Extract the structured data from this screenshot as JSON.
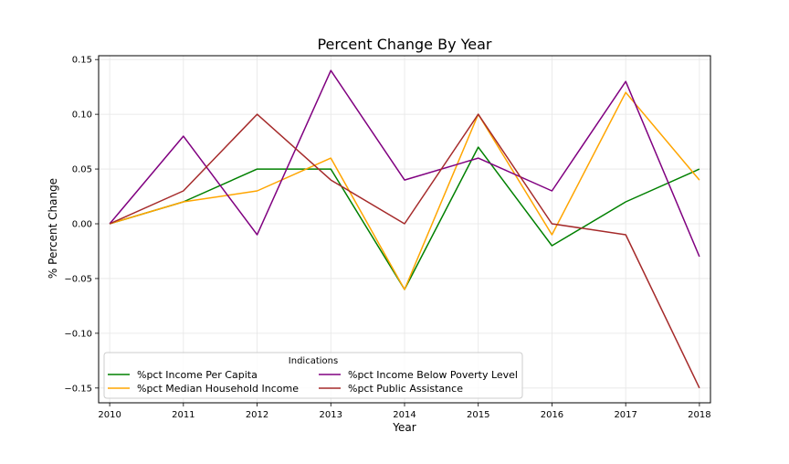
{
  "chart_data": {
    "type": "line",
    "title": "Percent Change By Year",
    "xlabel": "Year",
    "ylabel": "% Percent Change",
    "x": [
      2010,
      2011,
      2012,
      2013,
      2014,
      2015,
      2016,
      2017,
      2018
    ],
    "xlim": [
      2009.85,
      2018.15
    ],
    "ylim": [
      -0.1635,
      0.1535
    ],
    "yticks": [
      -0.15,
      -0.1,
      -0.05,
      0.0,
      0.05,
      0.1,
      0.15
    ],
    "ytick_labels": [
      "−0.15",
      "−0.10",
      "−0.05",
      "0.00",
      "0.05",
      "0.10",
      "0.15"
    ],
    "grid": true,
    "legend": {
      "title": "Indications",
      "placement": "lower-left",
      "columns": 2
    },
    "series": [
      {
        "name": "%pct Income Per Capita",
        "color": "#008000",
        "values": [
          0.0,
          0.02,
          0.05,
          0.05,
          -0.06,
          0.07,
          -0.02,
          0.02,
          0.05
        ]
      },
      {
        "name": "%pct Median Household Income",
        "color": "#ffa500",
        "values": [
          0.0,
          0.02,
          0.03,
          0.06,
          -0.06,
          0.1,
          -0.01,
          0.12,
          0.04
        ]
      },
      {
        "name": "%pct Income Below Poverty Level",
        "color": "#800080",
        "values": [
          0.0,
          0.08,
          -0.01,
          0.14,
          0.04,
          0.06,
          0.03,
          0.13,
          -0.03
        ]
      },
      {
        "name": "%pct Public Assistance",
        "color": "#a52a2a",
        "values": [
          0.0,
          0.03,
          0.1,
          0.04,
          0.0,
          0.1,
          0.0,
          -0.01,
          -0.15
        ]
      }
    ]
  }
}
